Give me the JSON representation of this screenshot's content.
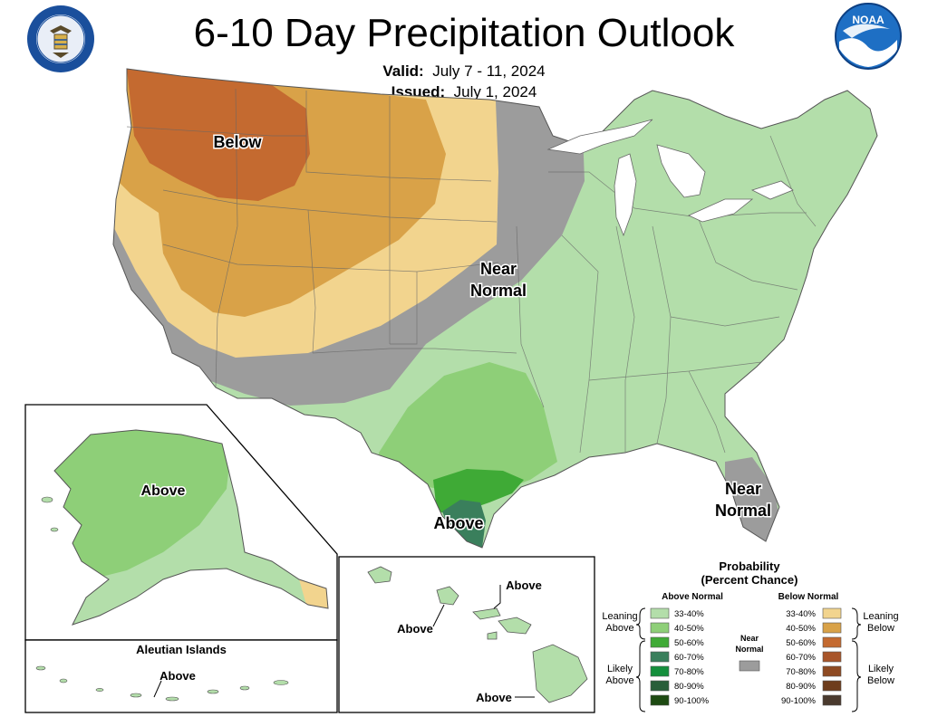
{
  "title": "6-10 Day Precipitation Outlook",
  "valid_label": "Valid:",
  "valid_value": "July 7 - 11, 2024",
  "issued_label": "Issued:",
  "issued_value": "July 1, 2024",
  "logos": {
    "left": "doc-seal-icon",
    "right": "noaa-logo-icon",
    "noaa_text": "NOAA"
  },
  "map_labels": {
    "below": "Below",
    "near_normal_1": "Near",
    "near_normal_2": "Normal",
    "above_tx": "Above",
    "near_fl_1": "Near",
    "near_fl_2": "Normal",
    "above_ak": "Above",
    "aleutian_title": "Aleutian Islands",
    "above_aleutian": "Above",
    "above_hi_1": "Above",
    "above_hi_2": "Above",
    "above_hi_3": "Above"
  },
  "legend": {
    "title_1": "Probability",
    "title_2": "(Percent Chance)",
    "above_header": "Above Normal",
    "below_header": "Below Normal",
    "leaning_above_1": "Leaning",
    "leaning_above_2": "Above",
    "likely_above_1": "Likely",
    "likely_above_2": "Above",
    "near_1": "Near",
    "near_2": "Normal",
    "leaning_below_1": "Leaning",
    "leaning_below_2": "Below",
    "likely_below_1": "Likely",
    "likely_below_2": "Below",
    "above": [
      {
        "label": "33-40%",
        "color": "#b3deaa"
      },
      {
        "label": "40-50%",
        "color": "#8ecf78"
      },
      {
        "label": "50-60%",
        "color": "#3faa36"
      },
      {
        "label": "60-70%",
        "color": "#3a7f5c"
      },
      {
        "label": "70-80%",
        "color": "#148f3c"
      },
      {
        "label": "80-90%",
        "color": "#285e3a"
      },
      {
        "label": "90-100%",
        "color": "#1d4a12"
      }
    ],
    "below": [
      {
        "label": "33-40%",
        "color": "#f2d48e"
      },
      {
        "label": "40-50%",
        "color": "#d9a248"
      },
      {
        "label": "50-60%",
        "color": "#c46a30"
      },
      {
        "label": "60-70%",
        "color": "#a8552a"
      },
      {
        "label": "70-80%",
        "color": "#8e4a22"
      },
      {
        "label": "80-90%",
        "color": "#6e3d1c"
      },
      {
        "label": "90-100%",
        "color": "#4a3a2e"
      }
    ],
    "near_color": "#9c9c9c"
  }
}
